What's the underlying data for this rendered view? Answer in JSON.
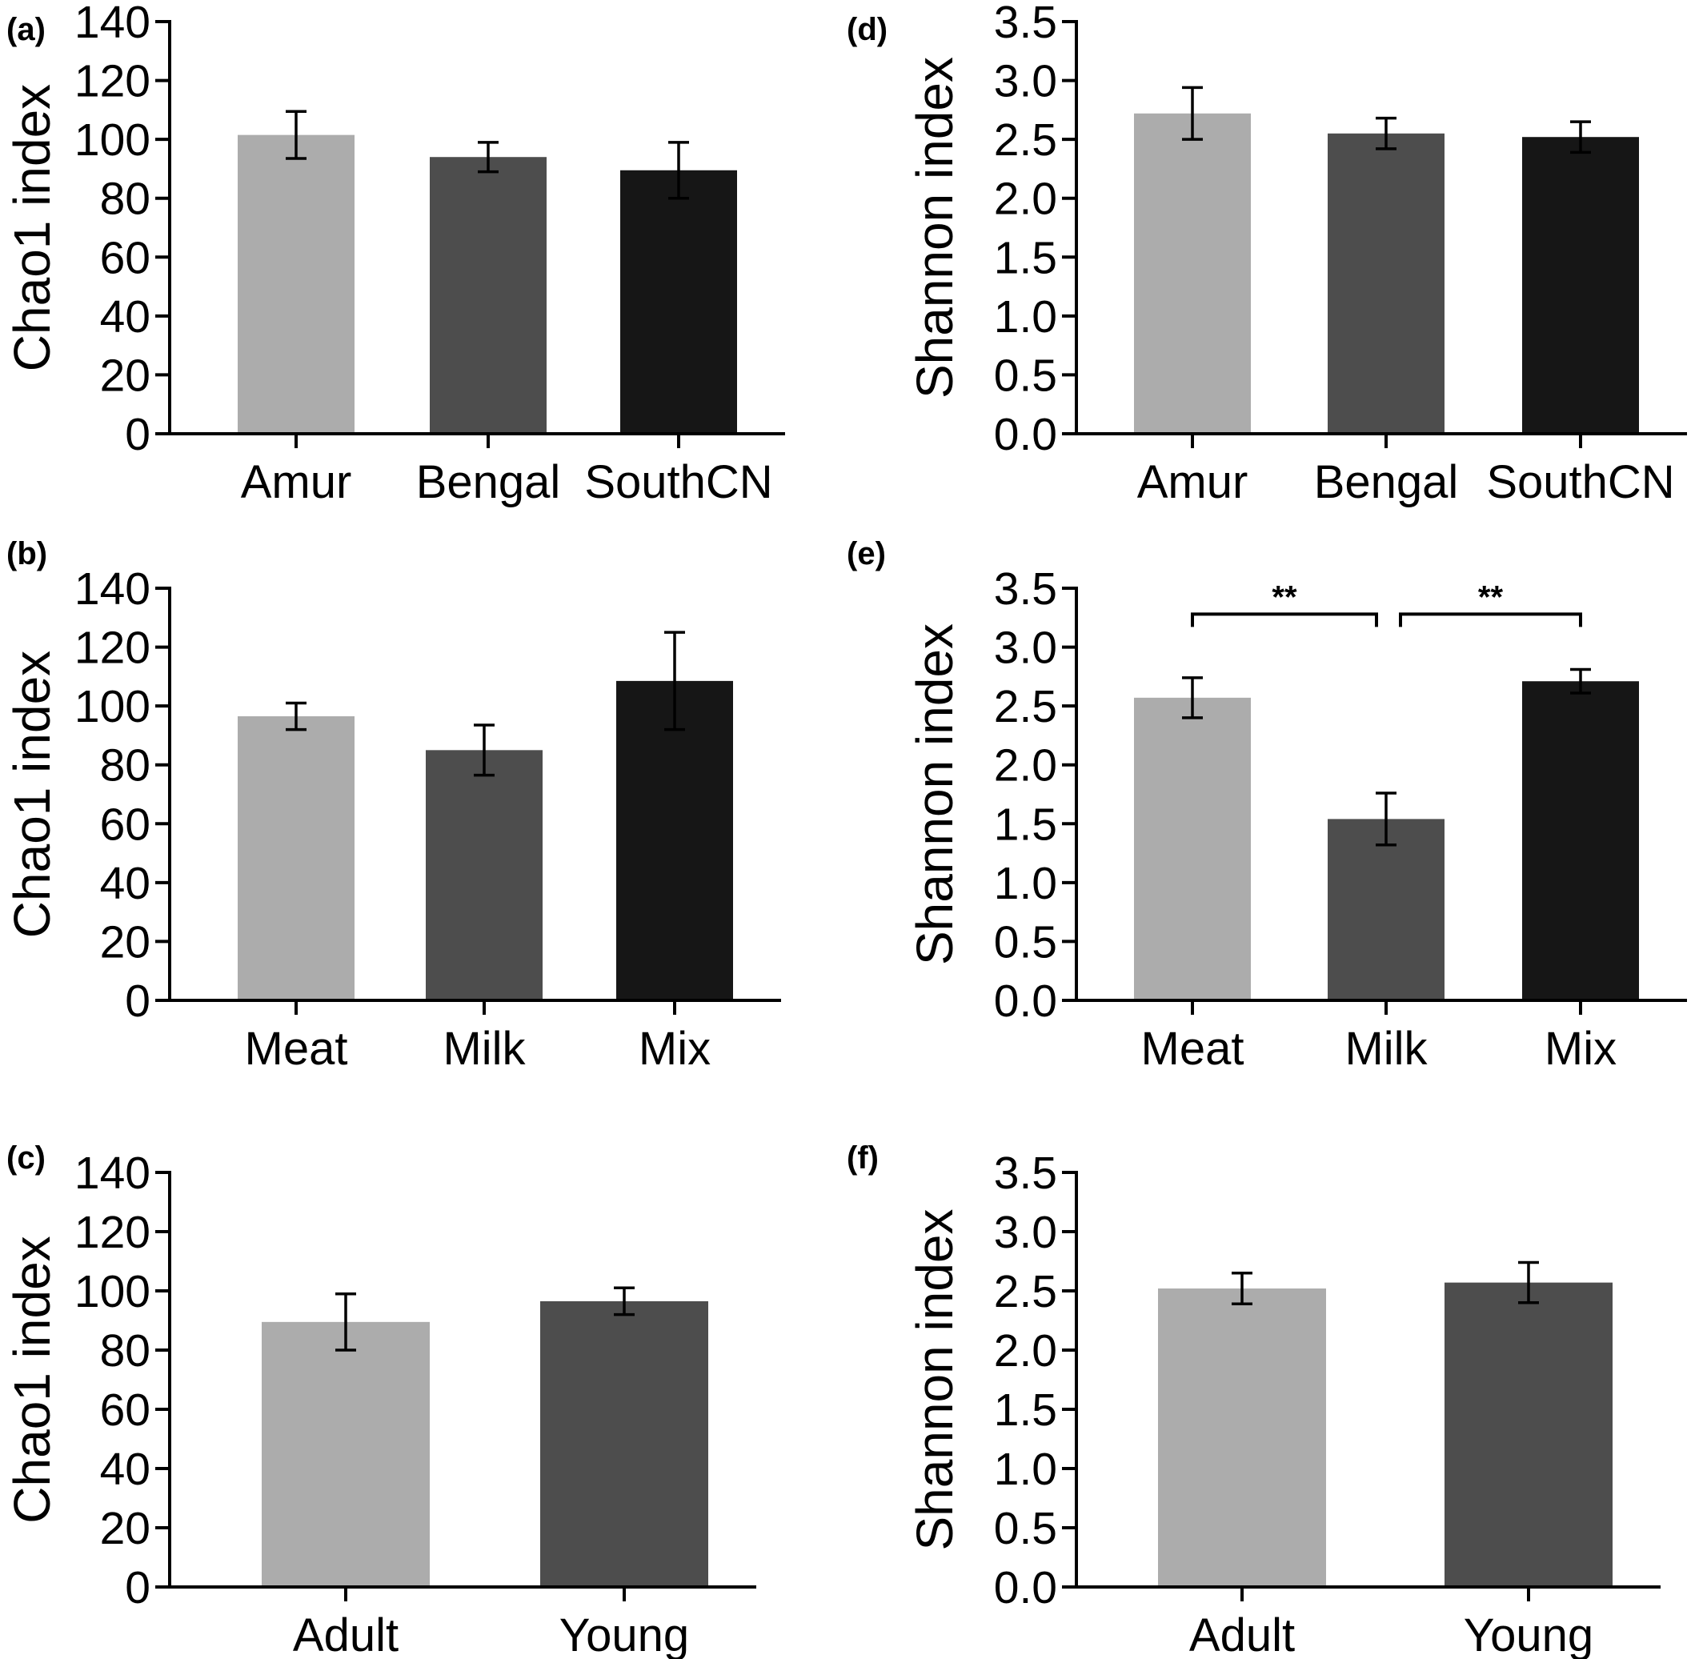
{
  "colors": {
    "light": "#acacac",
    "mid": "#4d4d4d",
    "dark": "#161616"
  },
  "chart_data": [
    {
      "type": "bar",
      "panel_label": "(a)",
      "ylabel": "Chao1 index",
      "ylim": [
        0,
        140
      ],
      "yticks": [
        "0",
        "20",
        "40",
        "60",
        "80",
        "100",
        "120",
        "140"
      ],
      "categories": [
        "Amur",
        "Bengal",
        "SouthCN"
      ],
      "values": [
        101.5,
        94,
        89.5
      ],
      "errors": [
        8,
        5,
        9.5
      ],
      "bar_colors": [
        "light",
        "mid",
        "dark"
      ],
      "significance": []
    },
    {
      "type": "bar",
      "panel_label": "(b)",
      "ylabel": "Chao1 index",
      "ylim": [
        0,
        140
      ],
      "yticks": [
        "0",
        "20",
        "40",
        "60",
        "80",
        "100",
        "120",
        "140"
      ],
      "categories": [
        "Meat",
        "Milk",
        "Mix"
      ],
      "values": [
        96.5,
        85,
        108.5
      ],
      "errors": [
        4.5,
        8.5,
        16.5
      ],
      "bar_colors": [
        "light",
        "mid",
        "dark"
      ],
      "significance": []
    },
    {
      "type": "bar",
      "panel_label": "(c)",
      "ylabel": "Chao1 index",
      "ylim": [
        0,
        140
      ],
      "yticks": [
        "0",
        "20",
        "40",
        "60",
        "80",
        "100",
        "120",
        "140"
      ],
      "categories": [
        "Adult",
        "Young"
      ],
      "values": [
        89.5,
        96.5
      ],
      "errors": [
        9.5,
        4.5
      ],
      "bar_colors": [
        "light",
        "mid"
      ],
      "significance": []
    },
    {
      "type": "bar",
      "panel_label": "(d)",
      "ylabel": "Shannon index",
      "ylim": [
        0,
        3.5
      ],
      "yticks": [
        "0.0",
        "0.5",
        "1.0",
        "1.5",
        "2.0",
        "2.5",
        "3.0",
        "3.5"
      ],
      "categories": [
        "Amur",
        "Bengal",
        "SouthCN"
      ],
      "values": [
        2.72,
        2.55,
        2.52
      ],
      "errors": [
        0.22,
        0.13,
        0.13
      ],
      "bar_colors": [
        "light",
        "mid",
        "dark"
      ],
      "significance": []
    },
    {
      "type": "bar",
      "panel_label": "(e)",
      "ylabel": "Shannon index",
      "ylim": [
        0,
        3.5
      ],
      "yticks": [
        "0.0",
        "0.5",
        "1.0",
        "1.5",
        "2.0",
        "2.5",
        "3.0",
        "3.5"
      ],
      "categories": [
        "Meat",
        "Milk",
        "Mix"
      ],
      "values": [
        2.57,
        1.54,
        2.71
      ],
      "errors": [
        0.17,
        0.22,
        0.1
      ],
      "bar_colors": [
        "light",
        "mid",
        "dark"
      ],
      "significance": [
        {
          "from": 0,
          "to": 1,
          "label": "**",
          "y": 3.28
        },
        {
          "from": 1,
          "to": 2,
          "label": "**",
          "y": 3.28
        }
      ]
    },
    {
      "type": "bar",
      "panel_label": "(f)",
      "ylabel": "Shannon index",
      "ylim": [
        0,
        3.5
      ],
      "yticks": [
        "0.0",
        "0.5",
        "1.0",
        "1.5",
        "2.0",
        "2.5",
        "3.0",
        "3.5"
      ],
      "categories": [
        "Adult",
        "Young"
      ],
      "values": [
        2.52,
        2.57
      ],
      "errors": [
        0.13,
        0.17
      ],
      "bar_colors": [
        "light",
        "mid"
      ],
      "significance": []
    }
  ]
}
